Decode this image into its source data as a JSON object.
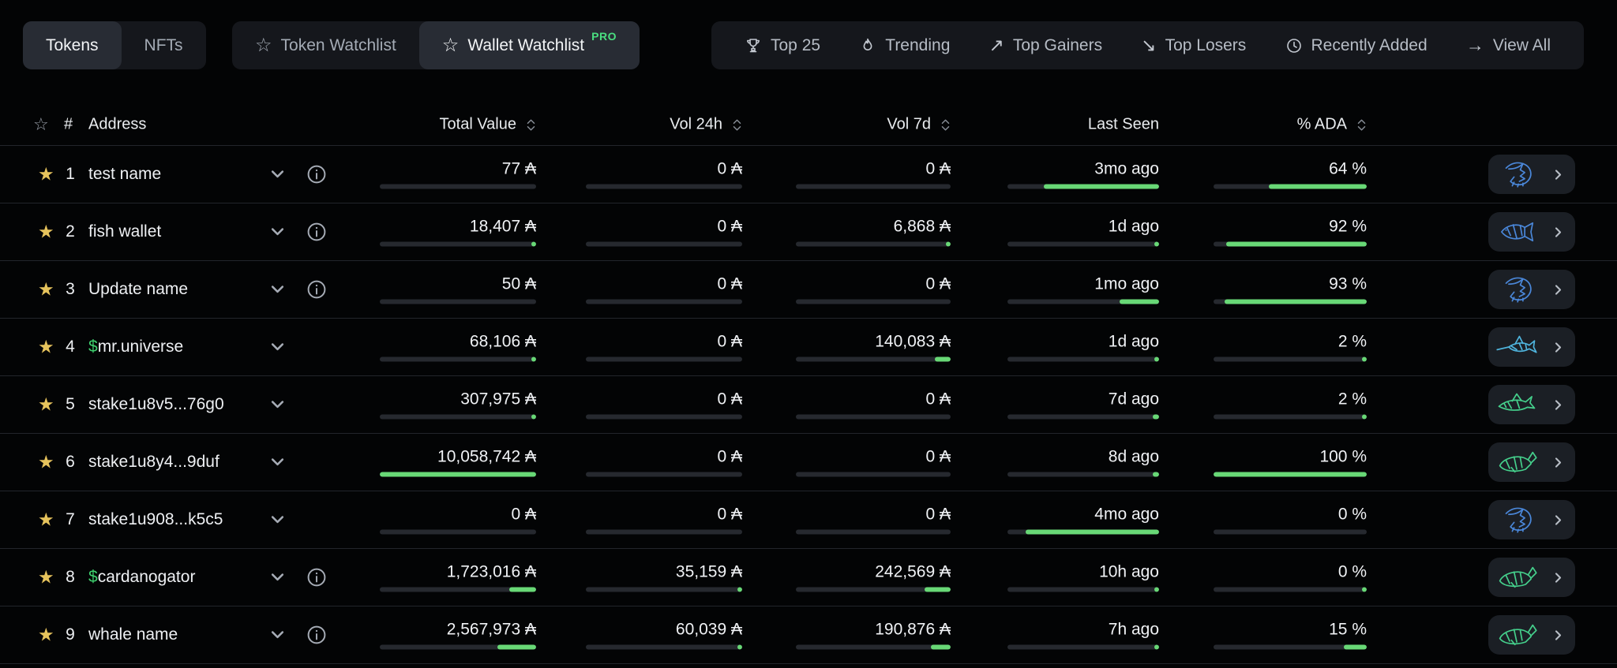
{
  "nav": {
    "asset_tabs": [
      {
        "label": "Tokens",
        "active": true
      },
      {
        "label": "NFTs",
        "active": false
      }
    ],
    "watchlist_tabs": [
      {
        "label": "Token Watchlist",
        "icon": "star-outline-icon",
        "active": false,
        "badge": ""
      },
      {
        "label": "Wallet Watchlist",
        "icon": "star-outline-icon",
        "active": true,
        "badge": "PRO"
      }
    ],
    "quick_links": [
      {
        "label": "Top 25",
        "icon": "trophy-icon"
      },
      {
        "label": "Trending",
        "icon": "flame-icon"
      },
      {
        "label": "Top Gainers",
        "icon": "arrow-up-right-icon"
      },
      {
        "label": "Top Losers",
        "icon": "arrow-down-right-icon"
      },
      {
        "label": "Recently Added",
        "icon": "clock-icon"
      },
      {
        "label": "View All",
        "icon": "arrow-right-icon"
      }
    ]
  },
  "table": {
    "headers": {
      "star": "☆",
      "rank": "#",
      "address": "Address",
      "total_value": "Total Value",
      "vol_24h": "Vol 24h",
      "vol_7d": "Vol 7d",
      "last_seen": "Last Seen",
      "pct_ada": "% ADA"
    },
    "rows": [
      {
        "rank": 1,
        "name": "test name",
        "name_prefix": "",
        "has_info": true,
        "total_value": "77 ₳",
        "total_value_fill": 0,
        "vol_24h": "0 ₳",
        "vol_24h_fill": 0,
        "vol_7d": "0 ₳",
        "vol_7d_fill": 0,
        "last_seen": "3mo ago",
        "last_seen_fill": 76,
        "pct_ada": "64 %",
        "pct_ada_fill": 64,
        "tier_icon": "shrimp-icon",
        "tier_color_key": "blue"
      },
      {
        "rank": 2,
        "name": "fish wallet",
        "name_prefix": "",
        "has_info": true,
        "total_value": "18,407 ₳",
        "total_value_fill": 2,
        "vol_24h": "0 ₳",
        "vol_24h_fill": 0,
        "vol_7d": "6,868 ₳",
        "vol_7d_fill": 2,
        "last_seen": "1d ago",
        "last_seen_fill": 1,
        "pct_ada": "92 %",
        "pct_ada_fill": 92,
        "tier_icon": "fish-icon",
        "tier_color_key": "blue"
      },
      {
        "rank": 3,
        "name": "Update name",
        "name_prefix": "",
        "has_info": true,
        "total_value": "50 ₳",
        "total_value_fill": 0,
        "vol_24h": "0 ₳",
        "vol_24h_fill": 0,
        "vol_7d": "0 ₳",
        "vol_7d_fill": 0,
        "last_seen": "1mo ago",
        "last_seen_fill": 26,
        "pct_ada": "93 %",
        "pct_ada_fill": 93,
        "tier_icon": "shrimp-icon",
        "tier_color_key": "blue"
      },
      {
        "rank": 4,
        "name": "mr.universe",
        "name_prefix": "$",
        "has_info": false,
        "total_value": "68,106 ₳",
        "total_value_fill": 2,
        "vol_24h": "0 ₳",
        "vol_24h_fill": 0,
        "vol_7d": "140,083 ₳",
        "vol_7d_fill": 10,
        "last_seen": "1d ago",
        "last_seen_fill": 1,
        "pct_ada": "2 %",
        "pct_ada_fill": 2,
        "tier_icon": "swordfish-icon",
        "tier_color_key": "cyan"
      },
      {
        "rank": 5,
        "name": "stake1u8v5...76g0",
        "name_prefix": "",
        "has_info": false,
        "total_value": "307,975 ₳",
        "total_value_fill": 3,
        "vol_24h": "0 ₳",
        "vol_24h_fill": 0,
        "vol_7d": "0 ₳",
        "vol_7d_fill": 0,
        "last_seen": "7d ago",
        "last_seen_fill": 4,
        "pct_ada": "2 %",
        "pct_ada_fill": 2,
        "tier_icon": "shark-icon",
        "tier_color_key": "green"
      },
      {
        "rank": 6,
        "name": "stake1u8y4...9duf",
        "name_prefix": "",
        "has_info": false,
        "total_value": "10,058,742 ₳",
        "total_value_fill": 100,
        "vol_24h": "0 ₳",
        "vol_24h_fill": 0,
        "vol_7d": "0 ₳",
        "vol_7d_fill": 0,
        "last_seen": "8d ago",
        "last_seen_fill": 4,
        "pct_ada": "100 %",
        "pct_ada_fill": 100,
        "tier_icon": "whale-icon",
        "tier_color_key": "green"
      },
      {
        "rank": 7,
        "name": "stake1u908...k5c5",
        "name_prefix": "",
        "has_info": false,
        "total_value": "0 ₳",
        "total_value_fill": 0,
        "vol_24h": "0 ₳",
        "vol_24h_fill": 0,
        "vol_7d": "0 ₳",
        "vol_7d_fill": 0,
        "last_seen": "4mo ago",
        "last_seen_fill": 88,
        "pct_ada": "0 %",
        "pct_ada_fill": 0,
        "tier_icon": "shrimp-icon",
        "tier_color_key": "blue"
      },
      {
        "rank": 8,
        "name": "cardanogator",
        "name_prefix": "$",
        "has_info": true,
        "total_value": "1,723,016 ₳",
        "total_value_fill": 17,
        "vol_24h": "35,159 ₳",
        "vol_24h_fill": 2,
        "vol_7d": "242,569 ₳",
        "vol_7d_fill": 17,
        "last_seen": "10h ago",
        "last_seen_fill": 1,
        "pct_ada": "0 %",
        "pct_ada_fill": 1,
        "tier_icon": "whale-icon",
        "tier_color_key": "green"
      },
      {
        "rank": 9,
        "name": "whale name",
        "name_prefix": "",
        "has_info": true,
        "total_value": "2,567,973 ₳",
        "total_value_fill": 25,
        "vol_24h": "60,039 ₳",
        "vol_24h_fill": 3,
        "vol_7d": "190,876 ₳",
        "vol_7d_fill": 13,
        "last_seen": "7h ago",
        "last_seen_fill": 1,
        "pct_ada": "15 %",
        "pct_ada_fill": 15,
        "tier_icon": "whale-icon",
        "tier_color_key": "green"
      }
    ]
  },
  "colors": {
    "accent_green": "#68d876",
    "bar_track": "#26292f",
    "star_yellow": "#e6c35c",
    "dollar_green": "#3ecf6e",
    "pro_badge_green": "#4ade80",
    "tier_blue": "#4a87d9",
    "tier_cyan": "#4fb5de",
    "tier_green": "#45d08c"
  }
}
